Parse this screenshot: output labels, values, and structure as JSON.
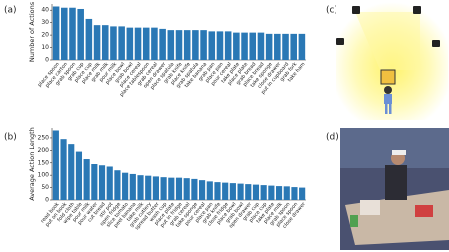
{
  "panels": [
    "(a)",
    "(b)",
    "(c)",
    "(d)"
  ],
  "chart_data": [
    {
      "type": "bar",
      "ylabel": "Number of Actions",
      "color": "#2a78b5",
      "categories": [
        "place spoon",
        "place carton",
        "grab spoon",
        "grab cup",
        "place cup",
        "place milk",
        "grab milk",
        "pour milk",
        "place bowl",
        "grab bowl",
        "place cereal",
        "place tablespoon",
        "grab cereal",
        "open drawer",
        "place spatula",
        "grab knife",
        "place knife",
        "grab spatula",
        "take banana",
        "grab pan",
        "place pan",
        "pour cereal",
        "take plate",
        "place plate",
        "grab bread",
        "place bread",
        "take sponge",
        "close drawer",
        "put in cupboard",
        "grab fork",
        "take ham"
      ],
      "values": [
        43,
        42,
        42,
        41,
        33,
        28,
        28,
        27,
        27,
        26,
        26,
        26,
        26,
        25,
        24,
        24,
        24,
        24,
        24,
        23,
        23,
        23,
        22,
        22,
        22,
        22,
        21,
        21,
        21,
        21,
        21
      ],
      "ylim": [
        0,
        45
      ],
      "yticks": [
        0,
        10,
        20,
        30,
        40
      ]
    },
    {
      "type": "bar",
      "ylabel": "Average Action Length",
      "color": "#2a78b5",
      "categories": [
        "read book",
        "put on book",
        "fold cloth",
        "wipe table",
        "pour milk",
        "pour water",
        "cut bread",
        "stir pot",
        "open fridge",
        "slice tomato",
        "peel banana",
        "take milk",
        "grab cutlery",
        "spread butter",
        "wash cup",
        "place plate",
        "put in fridge",
        "grab cereal",
        "take sponge",
        "pour cereal",
        "place pan",
        "grab knife",
        "close fridge",
        "place bowl",
        "grab bowl",
        "open drawer",
        "grab cup",
        "place cup",
        "take plate",
        "place milk",
        "grab spoon",
        "place spoon",
        "close drawer"
      ],
      "values": [
        280,
        245,
        225,
        195,
        165,
        145,
        140,
        135,
        120,
        110,
        105,
        100,
        98,
        95,
        92,
        90,
        90,
        88,
        85,
        80,
        75,
        72,
        70,
        68,
        66,
        64,
        62,
        60,
        58,
        56,
        55,
        52,
        50
      ],
      "ylim": [
        0,
        290
      ],
      "yticks": [
        0,
        50,
        100,
        150,
        200,
        250
      ]
    }
  ]
}
